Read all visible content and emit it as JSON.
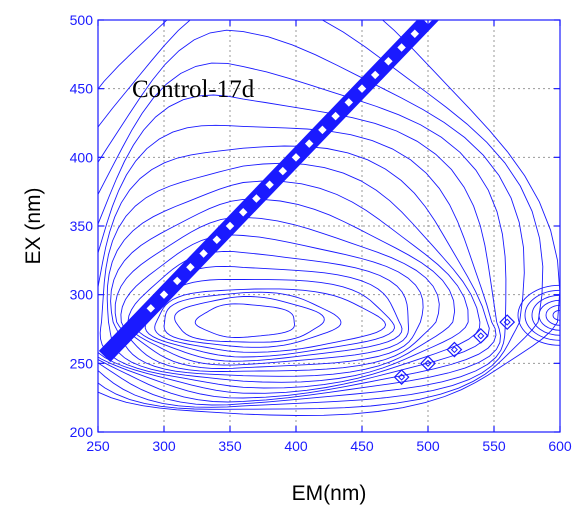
{
  "chart_data": {
    "type": "contour",
    "panel_label": "Control-17d",
    "xlabel": "EM(nm)",
    "ylabel": "EX (nm)",
    "xlim": [
      250,
      600
    ],
    "ylim": [
      200,
      500
    ],
    "x_ticks": [
      250,
      300,
      350,
      400,
      450,
      500,
      550,
      600
    ],
    "y_ticks": [
      200,
      250,
      300,
      350,
      400,
      450,
      500
    ],
    "grid": true,
    "line_color": "#1a1aff",
    "peaks": [
      {
        "em": 360,
        "ex": 280,
        "kind": "protein-like fluorescence (saturated core)"
      }
    ],
    "contour_sets": [
      {
        "name": "main-peak",
        "center": [
          360,
          280
        ],
        "core_rx_nm": [
          35,
          52,
          62
        ],
        "core_ry_nm": [
          11,
          15,
          18
        ],
        "rings": 16,
        "ring_step_nm": [
          5.5,
          3.2
        ],
        "right_skew": 1.55,
        "upper_stretch": 3.6
      },
      {
        "name": "right-edge-peak",
        "center": [
          600,
          285
        ],
        "rings": 6
      }
    ],
    "rayleigh_diagonal": {
      "x_range": [
        255,
        500
      ],
      "y_equals_x": true,
      "markers_from_x": 290
    },
    "second_order_markers": [
      {
        "em": 480,
        "ex": 240
      },
      {
        "em": 500,
        "ex": 250
      },
      {
        "em": 520,
        "ex": 260
      },
      {
        "em": 540,
        "ex": 270
      },
      {
        "em": 560,
        "ex": 280
      }
    ],
    "labels": {
      "x_ticks_text": [
        "250",
        "300",
        "350",
        "400",
        "450",
        "500",
        "550",
        "600"
      ],
      "y_ticks_text": [
        "200",
        "250",
        "300",
        "350",
        "400",
        "450",
        "500"
      ]
    }
  }
}
